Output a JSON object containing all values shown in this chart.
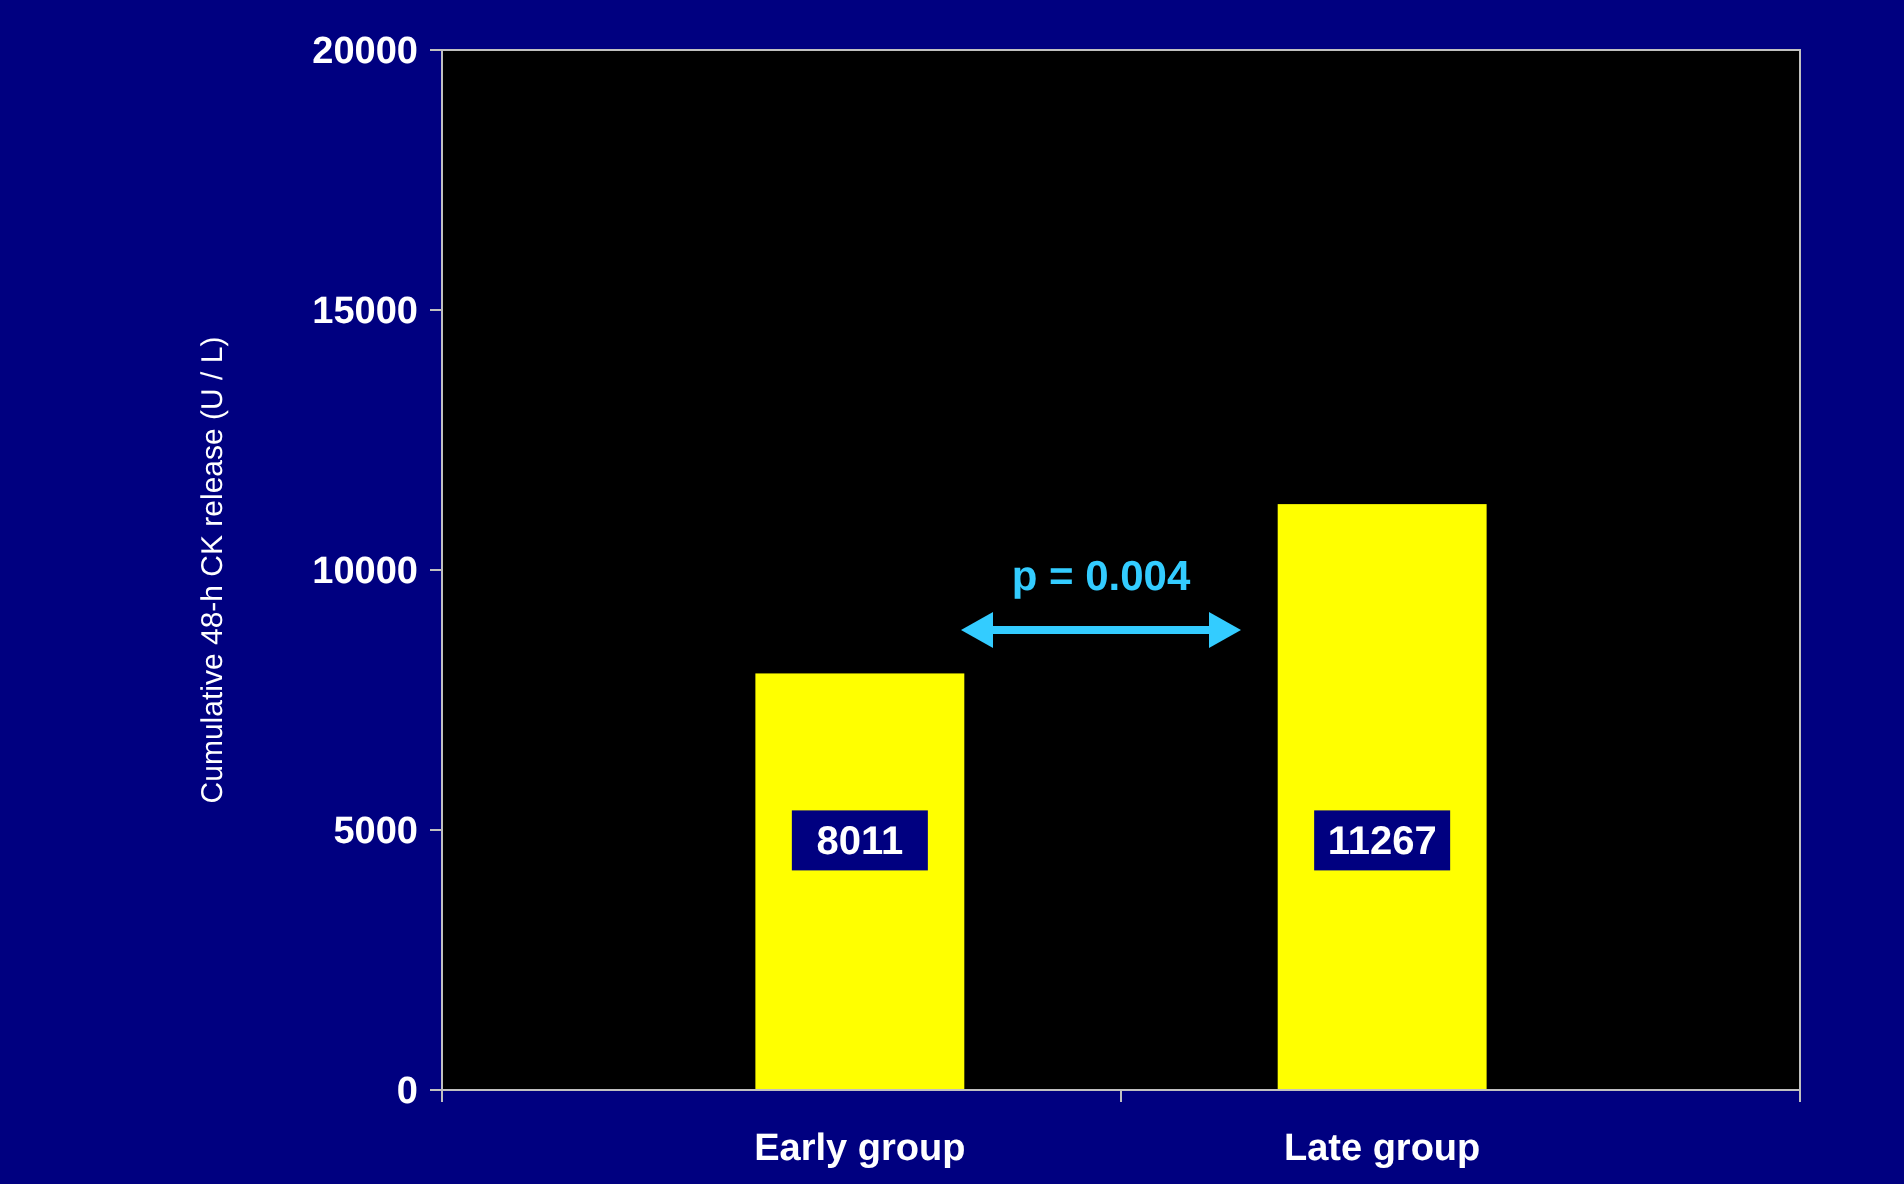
{
  "chart_data": {
    "type": "bar",
    "ylabel": "Cumulative 48-h CK release (U / L)",
    "categories": [
      "Early group",
      "Late group"
    ],
    "values": [
      8011,
      11267
    ],
    "color": "#ffff00",
    "ylim": [
      0,
      20000
    ],
    "yticks": [
      0,
      5000,
      10000,
      15000,
      20000
    ],
    "grid": false,
    "data_labels": true,
    "annotations": [
      "p = 0.004"
    ]
  }
}
